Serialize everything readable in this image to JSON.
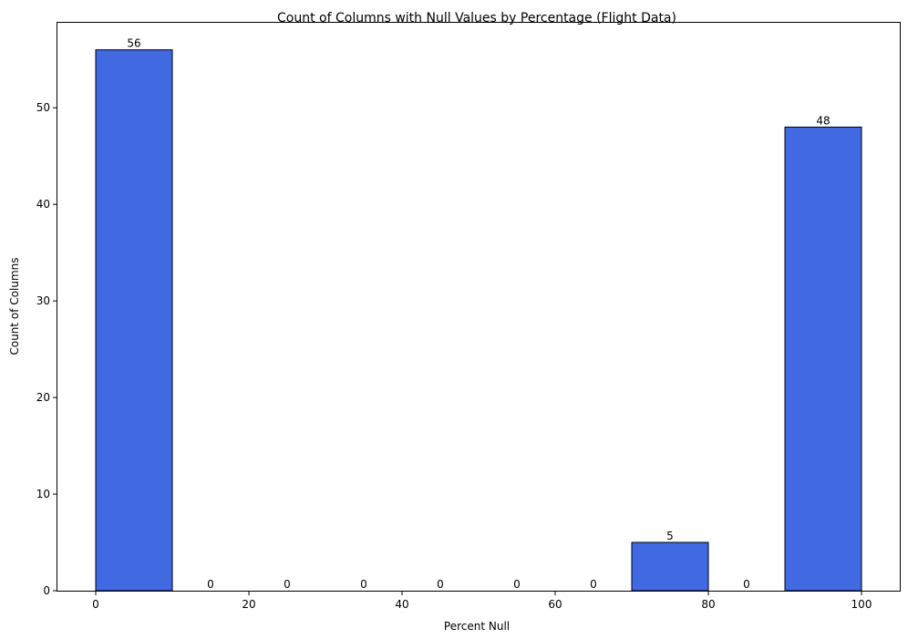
{
  "chart_data": {
    "type": "bar",
    "title": "Count of Columns with Null Values by Percentage (Flight Data)",
    "xlabel": "Percent Null",
    "ylabel": "Count of Columns",
    "xlim": [
      -5,
      105
    ],
    "ylim": [
      0,
      58.8
    ],
    "x_ticks": [
      0,
      20,
      40,
      60,
      80,
      100
    ],
    "y_ticks": [
      0,
      10,
      20,
      30,
      40,
      50
    ],
    "bins": [
      {
        "start": 0,
        "end": 10,
        "value": 56
      },
      {
        "start": 10,
        "end": 20,
        "value": 0
      },
      {
        "start": 20,
        "end": 30,
        "value": 0
      },
      {
        "start": 30,
        "end": 40,
        "value": 0
      },
      {
        "start": 40,
        "end": 50,
        "value": 0
      },
      {
        "start": 50,
        "end": 60,
        "value": 0
      },
      {
        "start": 60,
        "end": 70,
        "value": 0
      },
      {
        "start": 70,
        "end": 80,
        "value": 5
      },
      {
        "start": 80,
        "end": 90,
        "value": 0
      },
      {
        "start": 90,
        "end": 100,
        "value": 48
      }
    ],
    "bar_color": "#4169e1",
    "grid": false,
    "legend": "none"
  }
}
